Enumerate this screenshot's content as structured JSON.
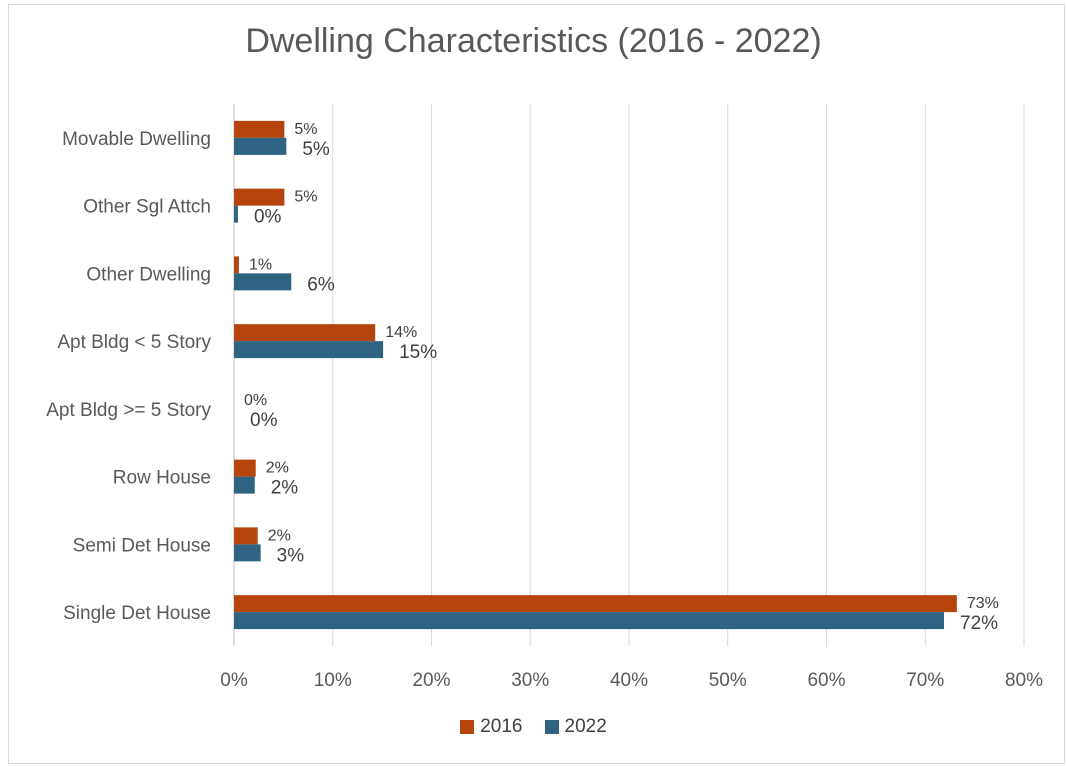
{
  "chart_data": {
    "type": "bar",
    "orientation": "horizontal",
    "title": "Dwelling Characteristics (2016 - 2022)",
    "categories": [
      "Movable Dwelling",
      "Other Sgl Attch",
      "Other Dwelling",
      "Apt Bldg < 5 Story",
      "Apt Bldg >= 5 Story",
      "Row House",
      "Semi Det House",
      "Single Det House"
    ],
    "series": [
      {
        "name": "2016",
        "color": "#b5450c",
        "values": [
          5.1,
          5.1,
          0.5,
          14.3,
          0.0,
          2.2,
          2.4,
          73.2
        ],
        "labels": [
          "5%",
          "5%",
          "1%",
          "14%",
          "0%",
          "2%",
          "2%",
          "73%"
        ]
      },
      {
        "name": "2022",
        "color": "#2e6382",
        "values": [
          5.3,
          0.4,
          5.8,
          15.1,
          0.0,
          2.1,
          2.7,
          71.9
        ],
        "labels": [
          "5%",
          "0%",
          "6%",
          "15%",
          "0%",
          "2%",
          "3%",
          "72%"
        ]
      }
    ],
    "xlim": [
      0,
      80
    ],
    "xticks": [
      "0%",
      "10%",
      "20%",
      "30%",
      "40%",
      "50%",
      "60%",
      "70%",
      "80%"
    ],
    "grid": true,
    "legend_position": "bottom"
  }
}
